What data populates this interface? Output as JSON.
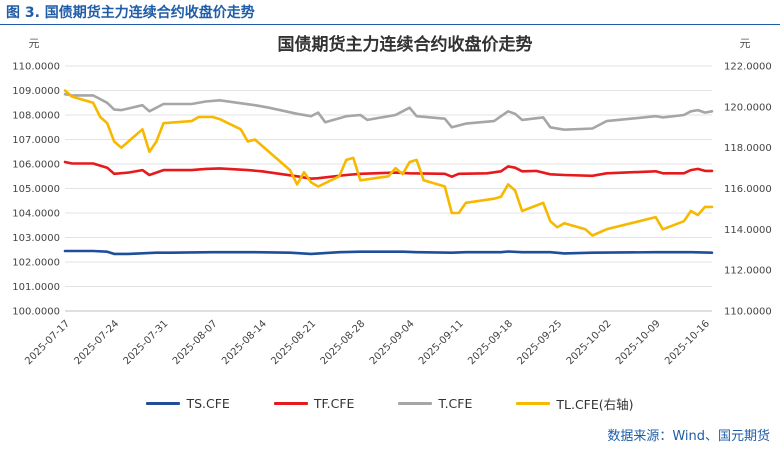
{
  "figure_caption": "图 3.  国债期货主力连续合约收盘价走势",
  "source_note": "数据来源：Wind、国元期货",
  "colors": {
    "caption": "#1f5da8",
    "TS.CFE": "#1f4e9a",
    "TF.CFE": "#e8191c",
    "T.CFE": "#a6a6a6",
    "TL.CFE": "#f7b800"
  },
  "chart_data": {
    "type": "line",
    "title": "国债期货主力连续合约收盘价走势",
    "y_left_unit": "元",
    "y_right_unit": "元",
    "y_left_lim": [
      100,
      110
    ],
    "y_right_lim": [
      110,
      122
    ],
    "y_left_ticks": [
      "100.0000",
      "101.0000",
      "102.0000",
      "103.0000",
      "104.0000",
      "105.0000",
      "106.0000",
      "107.0000",
      "108.0000",
      "109.0000",
      "110.0000"
    ],
    "y_right_ticks": [
      "110.0000",
      "112.0000",
      "114.0000",
      "116.0000",
      "118.0000",
      "120.0000",
      "122.0000"
    ],
    "x_tick_labels": [
      "2025-07-17",
      "2025-07-24",
      "2025-07-31",
      "2025-08-07",
      "2025-08-14",
      "2025-08-21",
      "2025-08-28",
      "2025-09-04",
      "2025-09-11",
      "2025-09-18",
      "2025-09-25",
      "2025-10-02",
      "2025-10-09",
      "2025-10-16"
    ],
    "x_range": [
      "2025-07-17",
      "2025-10-17"
    ],
    "grid": "horizontal",
    "legend_position": "bottom",
    "series": [
      {
        "name": "TS.CFE",
        "axis": "left",
        "points": [
          [
            "2025-07-17",
            102.45
          ],
          [
            "2025-07-21",
            102.45
          ],
          [
            "2025-07-23",
            102.42
          ],
          [
            "2025-07-24",
            102.33
          ],
          [
            "2025-07-26",
            102.33
          ],
          [
            "2025-07-30",
            102.38
          ],
          [
            "2025-08-01",
            102.38
          ],
          [
            "2025-08-07",
            102.4
          ],
          [
            "2025-08-13",
            102.4
          ],
          [
            "2025-08-18",
            102.38
          ],
          [
            "2025-08-21",
            102.33
          ],
          [
            "2025-08-25",
            102.4
          ],
          [
            "2025-08-28",
            102.42
          ],
          [
            "2025-09-03",
            102.42
          ],
          [
            "2025-09-05",
            102.4
          ],
          [
            "2025-09-10",
            102.38
          ],
          [
            "2025-09-12",
            102.4
          ],
          [
            "2025-09-17",
            102.4
          ],
          [
            "2025-09-18",
            102.43
          ],
          [
            "2025-09-20",
            102.4
          ],
          [
            "2025-09-24",
            102.4
          ],
          [
            "2025-09-26",
            102.35
          ],
          [
            "2025-09-30",
            102.38
          ],
          [
            "2025-10-09",
            102.4
          ],
          [
            "2025-10-14",
            102.4
          ],
          [
            "2025-10-17",
            102.38
          ]
        ]
      },
      {
        "name": "TF.CFE",
        "axis": "left",
        "points": [
          [
            "2025-07-17",
            106.08
          ],
          [
            "2025-07-18",
            106.02
          ],
          [
            "2025-07-21",
            106.02
          ],
          [
            "2025-07-23",
            105.85
          ],
          [
            "2025-07-24",
            105.6
          ],
          [
            "2025-07-26",
            105.65
          ],
          [
            "2025-07-28",
            105.75
          ],
          [
            "2025-07-29",
            105.55
          ],
          [
            "2025-07-31",
            105.75
          ],
          [
            "2025-08-04",
            105.75
          ],
          [
            "2025-08-06",
            105.8
          ],
          [
            "2025-08-08",
            105.82
          ],
          [
            "2025-08-12",
            105.75
          ],
          [
            "2025-08-14",
            105.7
          ],
          [
            "2025-08-19",
            105.5
          ],
          [
            "2025-08-21",
            105.4
          ],
          [
            "2025-08-22",
            105.42
          ],
          [
            "2025-08-26",
            105.55
          ],
          [
            "2025-08-28",
            105.6
          ],
          [
            "2025-09-02",
            105.65
          ],
          [
            "2025-09-04",
            105.62
          ],
          [
            "2025-09-09",
            105.6
          ],
          [
            "2025-09-10",
            105.48
          ],
          [
            "2025-09-11",
            105.6
          ],
          [
            "2025-09-15",
            105.62
          ],
          [
            "2025-09-17",
            105.7
          ],
          [
            "2025-09-18",
            105.9
          ],
          [
            "2025-09-19",
            105.85
          ],
          [
            "2025-09-20",
            105.7
          ],
          [
            "2025-09-22",
            105.72
          ],
          [
            "2025-09-24",
            105.58
          ],
          [
            "2025-09-26",
            105.55
          ],
          [
            "2025-09-30",
            105.52
          ],
          [
            "2025-10-02",
            105.62
          ],
          [
            "2025-10-09",
            105.7
          ],
          [
            "2025-10-10",
            105.62
          ],
          [
            "2025-10-13",
            105.62
          ],
          [
            "2025-10-14",
            105.75
          ],
          [
            "2025-10-15",
            105.8
          ],
          [
            "2025-10-16",
            105.72
          ],
          [
            "2025-10-17",
            105.72
          ]
        ]
      },
      {
        "name": "T.CFE",
        "axis": "left",
        "points": [
          [
            "2025-07-17",
            108.85
          ],
          [
            "2025-07-18",
            108.8
          ],
          [
            "2025-07-21",
            108.8
          ],
          [
            "2025-07-23",
            108.5
          ],
          [
            "2025-07-24",
            108.22
          ],
          [
            "2025-07-25",
            108.2
          ],
          [
            "2025-07-28",
            108.4
          ],
          [
            "2025-07-29",
            108.15
          ],
          [
            "2025-07-31",
            108.45
          ],
          [
            "2025-08-04",
            108.45
          ],
          [
            "2025-08-06",
            108.55
          ],
          [
            "2025-08-08",
            108.6
          ],
          [
            "2025-08-13",
            108.4
          ],
          [
            "2025-08-15",
            108.3
          ],
          [
            "2025-08-19",
            108.05
          ],
          [
            "2025-08-21",
            107.95
          ],
          [
            "2025-08-22",
            108.1
          ],
          [
            "2025-08-23",
            107.7
          ],
          [
            "2025-08-26",
            107.95
          ],
          [
            "2025-08-28",
            108.0
          ],
          [
            "2025-08-29",
            107.8
          ],
          [
            "2025-09-02",
            108.0
          ],
          [
            "2025-09-03",
            108.15
          ],
          [
            "2025-09-04",
            108.3
          ],
          [
            "2025-09-05",
            107.95
          ],
          [
            "2025-09-09",
            107.85
          ],
          [
            "2025-09-10",
            107.5
          ],
          [
            "2025-09-12",
            107.65
          ],
          [
            "2025-09-16",
            107.75
          ],
          [
            "2025-09-18",
            108.15
          ],
          [
            "2025-09-19",
            108.05
          ],
          [
            "2025-09-20",
            107.8
          ],
          [
            "2025-09-23",
            107.9
          ],
          [
            "2025-09-24",
            107.5
          ],
          [
            "2025-09-26",
            107.4
          ],
          [
            "2025-09-30",
            107.45
          ],
          [
            "2025-10-02",
            107.75
          ],
          [
            "2025-10-09",
            107.95
          ],
          [
            "2025-10-10",
            107.9
          ],
          [
            "2025-10-13",
            108.0
          ],
          [
            "2025-10-14",
            108.15
          ],
          [
            "2025-10-15",
            108.2
          ],
          [
            "2025-10-16",
            108.1
          ],
          [
            "2025-10-17",
            108.15
          ]
        ]
      },
      {
        "name": "TL.CFE(右轴)",
        "axis": "right",
        "points": [
          [
            "2025-07-17",
            120.8
          ],
          [
            "2025-07-18",
            120.5
          ],
          [
            "2025-07-21",
            120.2
          ],
          [
            "2025-07-22",
            119.5
          ],
          [
            "2025-07-23",
            119.2
          ],
          [
            "2025-07-24",
            118.3
          ],
          [
            "2025-07-25",
            118.0
          ],
          [
            "2025-07-28",
            118.9
          ],
          [
            "2025-07-29",
            117.8
          ],
          [
            "2025-07-30",
            118.3
          ],
          [
            "2025-07-31",
            119.2
          ],
          [
            "2025-08-04",
            119.3
          ],
          [
            "2025-08-05",
            119.5
          ],
          [
            "2025-08-07",
            119.5
          ],
          [
            "2025-08-08",
            119.4
          ],
          [
            "2025-08-11",
            118.9
          ],
          [
            "2025-08-12",
            118.3
          ],
          [
            "2025-08-13",
            118.4
          ],
          [
            "2025-08-18",
            116.9
          ],
          [
            "2025-08-19",
            116.2
          ],
          [
            "2025-08-20",
            116.8
          ],
          [
            "2025-08-21",
            116.3
          ],
          [
            "2025-08-22",
            116.1
          ],
          [
            "2025-08-25",
            116.6
          ],
          [
            "2025-08-26",
            117.4
          ],
          [
            "2025-08-27",
            117.5
          ],
          [
            "2025-08-28",
            116.4
          ],
          [
            "2025-09-01",
            116.6
          ],
          [
            "2025-09-02",
            117.0
          ],
          [
            "2025-09-03",
            116.7
          ],
          [
            "2025-09-04",
            117.3
          ],
          [
            "2025-09-05",
            117.4
          ],
          [
            "2025-09-06",
            116.4
          ],
          [
            "2025-09-09",
            116.1
          ],
          [
            "2025-09-10",
            114.8
          ],
          [
            "2025-09-11",
            114.8
          ],
          [
            "2025-09-12",
            115.3
          ],
          [
            "2025-09-16",
            115.5
          ],
          [
            "2025-09-17",
            115.6
          ],
          [
            "2025-09-18",
            116.2
          ],
          [
            "2025-09-19",
            115.9
          ],
          [
            "2025-09-20",
            114.9
          ],
          [
            "2025-09-23",
            115.3
          ],
          [
            "2025-09-24",
            114.4
          ],
          [
            "2025-09-25",
            114.1
          ],
          [
            "2025-09-26",
            114.3
          ],
          [
            "2025-09-29",
            114.0
          ],
          [
            "2025-09-30",
            113.7
          ],
          [
            "2025-10-02",
            114.0
          ],
          [
            "2025-10-09",
            114.6
          ],
          [
            "2025-10-10",
            114.0
          ],
          [
            "2025-10-13",
            114.4
          ],
          [
            "2025-10-14",
            114.9
          ],
          [
            "2025-10-15",
            114.7
          ],
          [
            "2025-10-16",
            115.1
          ],
          [
            "2025-10-17",
            115.1
          ]
        ]
      }
    ]
  }
}
